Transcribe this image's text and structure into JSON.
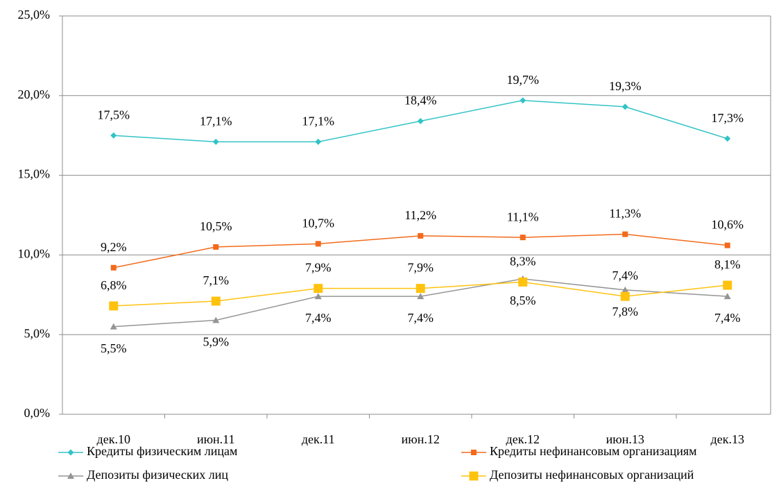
{
  "chart_data": {
    "type": "line",
    "categories": [
      "дек.10",
      "июн.11",
      "дек.11",
      "июн.12",
      "дек.12",
      "июн.13",
      "дек.13"
    ],
    "series": [
      {
        "name": "Кредиты физическим лицам",
        "color": "#33c3c6",
        "marker": "diamond",
        "values": [
          17.5,
          17.1,
          17.1,
          18.4,
          19.7,
          19.3,
          17.3
        ],
        "value_labels": [
          "17,5%",
          "17,1%",
          "17,1%",
          "18,4%",
          "19,7%",
          "19,3%",
          "17,3%"
        ]
      },
      {
        "name": "Кредиты нефинансовым организациям",
        "color": "#f26a1b",
        "marker": "square",
        "values": [
          9.2,
          10.5,
          10.7,
          11.2,
          11.1,
          11.3,
          10.6
        ],
        "value_labels": [
          "9,2%",
          "10,5%",
          "10,7%",
          "11,2%",
          "11,1%",
          "11,3%",
          "10,6%"
        ]
      },
      {
        "name": "Депозиты физических лиц",
        "color": "#959595",
        "marker": "triangle",
        "values": [
          5.5,
          5.9,
          7.4,
          7.4,
          8.5,
          7.8,
          7.4
        ],
        "value_labels": [
          "5,5%",
          "5,9%",
          "7,4%",
          "7,4%",
          "8,5%",
          "7,8%",
          "7,4%"
        ]
      },
      {
        "name": "Депозиты нефинансовых организаций",
        "color": "#ffc20e",
        "marker": "big-square",
        "values": [
          6.8,
          7.1,
          7.9,
          7.9,
          8.3,
          7.4,
          8.1
        ],
        "value_labels": [
          "6,8%",
          "7,1%",
          "7,9%",
          "7,9%",
          "8,3%",
          "7,4%",
          "8,1%"
        ]
      }
    ],
    "ylim": [
      0,
      25
    ],
    "yticks": [
      {
        "value": 0,
        "label": "0,0%"
      },
      {
        "value": 5,
        "label": "5,0%"
      },
      {
        "value": 10,
        "label": "10,0%"
      },
      {
        "value": 15,
        "label": "15,0%"
      },
      {
        "value": 20,
        "label": "20,0%"
      },
      {
        "value": 25,
        "label": "25,0%"
      }
    ],
    "grid": true,
    "legend": "bottom"
  }
}
